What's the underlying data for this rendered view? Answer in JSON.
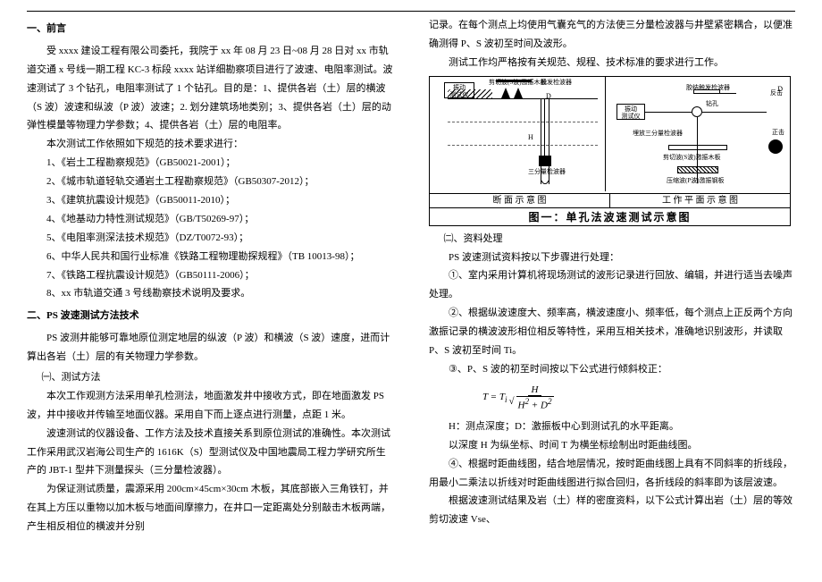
{
  "left": {
    "h1": "一、前言",
    "p1": "受 xxxx 建设工程有限公司委托，我院于 xx 年 08 月 23 日~08 月 28 日对 xx 市轨道交通 x 号线一期工程 KC-3 标段 xxxx 站详细勘察项目进行了波速、电阻率测试。波速测试了 3 个钻孔，电阻率测试了 1 个钻孔。目的是：1、提供各岩（土）层的横波（S 波）波速和纵波（P 波）波速；2. 划分建筑场地类别；3、提供各岩（土）层的动弹性模量等物理力学参数；4、提供各岩（土）层的电阻率。",
    "p2": "本次测试工作依照如下规范的技术要求进行：",
    "li1": "1、《岩土工程勘察规范》（GB50021-2001）；",
    "li2": "2、《城市轨道轻轨交通岩土工程勘察规范》（GB50307-2012）；",
    "li3": "3、《建筑抗震设计规范》（GB50011-2010）；",
    "li4": "4、《地基动力特性测试规范》（GB/T50269-97）；",
    "li5": "5、《电阻率测深法技术规范》（DZ/T0072-93）；",
    "li6": "6、中华人民共和国行业标准《铁路工程物理勘探规程》（TB 10013-98）；",
    "li7": "7、《铁路工程抗震设计规范》（GB50111-2006）；",
    "li8": "8、xx 市轨道交通 3 号线勘察技术说明及要求。",
    "h2": "二、PS 波速测试方法技术",
    "p3": "PS 波测井能够可靠地原位测定地层的纵波（P 波）和横波（S 波）速度，进而计算出各岩（土）层的有关物理力学参数。",
    "s1": "㈠、测试方法",
    "p4": "本次工作观测方法采用单孔检测法，地面激发井中接收方式，即在地面激发 PS 波，井中接收并传输至地面仪器。采用自下而上逐点进行测量，点距 1 米。",
    "p5": "波速测试的仪器设备、工作方法及技术直接关系到原位测试的准确性。本次测试工作采用武汉岩海公司生产的 1616K（S）型测试仪及中国地震局工程力学研究所生产的 JBT-1 型井下测量探头（三分量检波器）。",
    "p6": "为保证测试质量，震源采用 200cm×45cm×30cm 木板，其底部嵌入三角铁钉，并在其上方压以重物以加木板与地面间摩擦力，在井口一定距离处分别敲击木板两端，产生相反相位的横波并分别"
  },
  "right": {
    "p1": "记录。在每个测点上均使用气囊充气的方法使三分量检波器与井壁紧密耦合，以便准确测得 P、S 波初至时间及波形。",
    "p2": "测试工作均严格按有关规范、规程、技术标准的要求进行工作。",
    "dia": {
      "cap_left": "断 面 示 意 图",
      "cap_right": "工 作 平 面 示 意 图",
      "title": "图一：单孔法波速测试示意图",
      "inst": "振动\n测试仪",
      "label_s": "剪切波(S波)激振木板",
      "label_b": "触发检波器",
      "label_geo": "三分量检波器",
      "pv_inst": "振动\n测试仪",
      "pv_bore": "钻孔",
      "pv_geo": "埋放三分量检波器",
      "pv_plank": "剪切波(S波)激振木板",
      "pv_plate": "压缩波(P波)激振钢板",
      "pv_det": "胶结触发检波器",
      "pv_counter": "反击",
      "pv_hammer": "正击",
      "d_label": "D",
      "h_label": "H"
    },
    "s2": "㈡、资料处理",
    "p3": "PS 波速测试资料按以下步骤进行处理：",
    "li1": "①、室内采用计算机将现场测试的波形记录进行回放、编辑，并进行适当去噪声处理。",
    "li2": "②、根据纵波速度大、频率高，横波速度小、频率低，每个测点上正反两个方向激振记录的横波波形相位相反等特性，采用互相关技术，准确地识别波形，并读取 P、S 波初至时间 Ti。",
    "li3": "③、P、S 波的初至时间按以下公式进行倾斜校正：",
    "formula": {
      "lhs": "T = T",
      "sub": "i",
      "num": "H",
      "den_h": "H",
      "den_d": "D"
    },
    "fp1": "H：测点深度；D：激振板中心到测试孔的水平距离。",
    "fp2": "以深度 H 为纵坐标、时间 T 为横坐标绘制出时距曲线图。",
    "li4": "④、根据时距曲线图，结合地层情况，按时距曲线图上具有不同斜率的折线段，用最小二乘法以折线对时距曲线图进行拟合回归，各折线段的斜率即为该层波速。",
    "p4": "根据波速测试结果及岩（土）样的密度资料，以下公式计算出岩（土）层的等效剪切波速 Vse、"
  }
}
